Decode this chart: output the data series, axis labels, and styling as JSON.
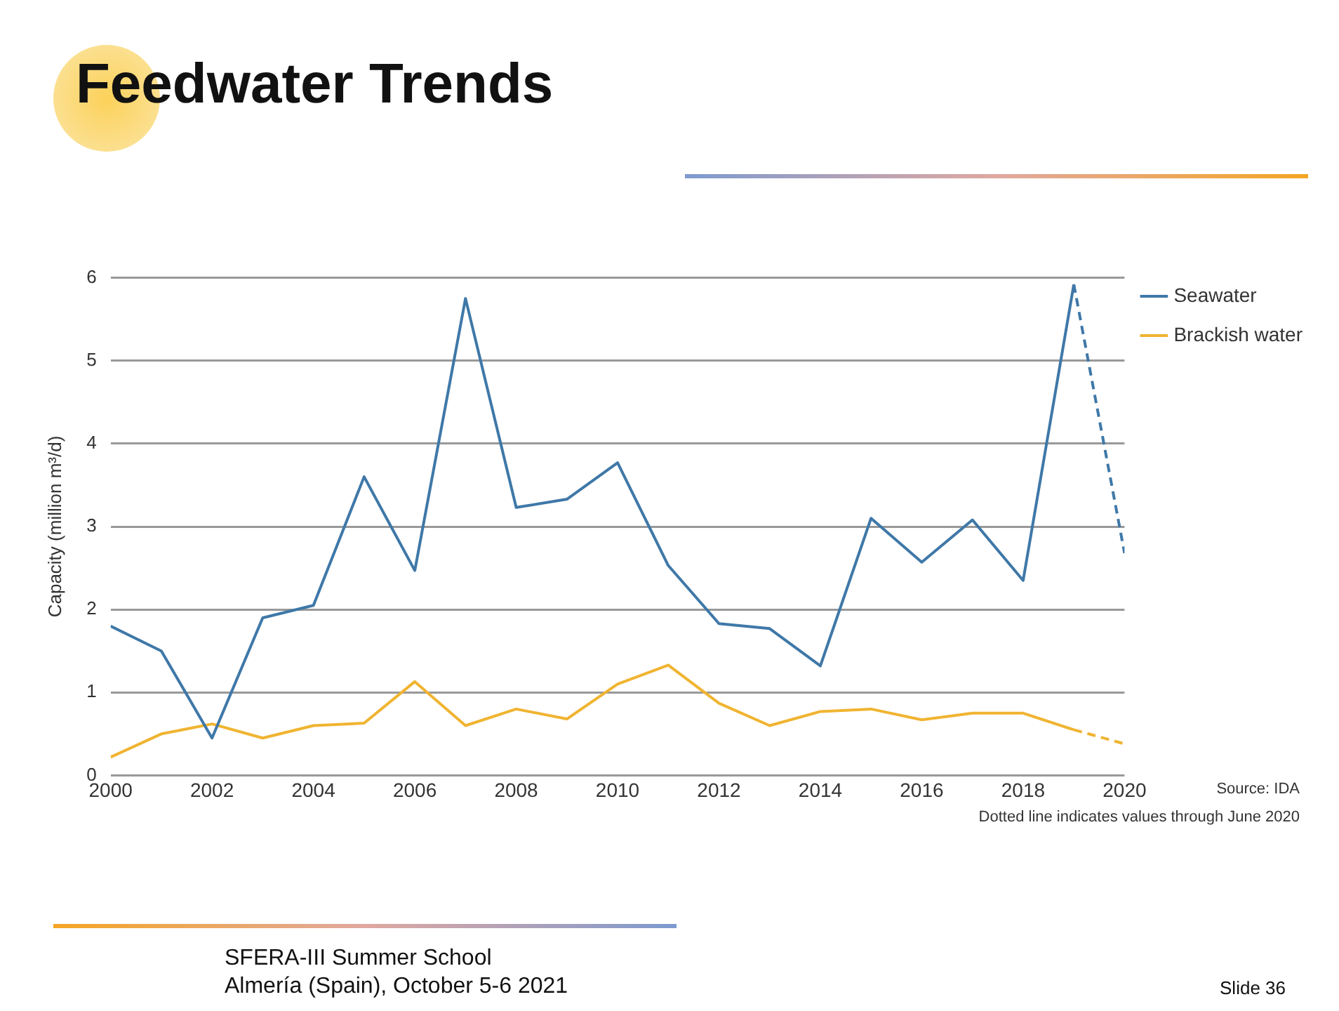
{
  "chart_data": {
    "type": "line",
    "title": "Feedwater Trends",
    "ylabel": "Capacity (million m³/d)",
    "xlim": [
      2000,
      2020
    ],
    "xticks": [
      2000,
      2002,
      2004,
      2006,
      2008,
      2010,
      2012,
      2014,
      2016,
      2018,
      2020
    ],
    "ylim": [
      0,
      6
    ],
    "yticks": [
      0,
      1,
      2,
      3,
      4,
      5,
      6
    ],
    "grid": "y",
    "legend": "top right",
    "marker": "none",
    "series": [
      {
        "name": "Seawater",
        "color": "#3f78a8",
        "line_style": "solid",
        "x": [
          2000,
          2001,
          2002,
          2003,
          2004,
          2005,
          2006,
          2007,
          2008,
          2009,
          2010,
          2011,
          2012,
          2013,
          2014,
          2015,
          2016,
          2017,
          2018,
          2019
        ],
        "values": [
          1.8,
          1.5,
          0.45,
          1.9,
          2.05,
          3.6,
          2.47,
          5.75,
          3.23,
          3.33,
          3.77,
          2.53,
          1.83,
          1.77,
          1.32,
          3.1,
          2.57,
          3.08,
          2.35,
          5.92
        ]
      },
      {
        "name": "Brackish water",
        "color": "#f0b431",
        "line_style": "solid",
        "x": [
          2000,
          2001,
          2002,
          2003,
          2004,
          2005,
          2006,
          2007,
          2008,
          2009,
          2010,
          2011,
          2012,
          2013,
          2014,
          2015,
          2016,
          2017,
          2018,
          2019
        ],
        "values": [
          0.22,
          0.5,
          0.62,
          0.45,
          0.6,
          0.63,
          1.13,
          0.6,
          0.8,
          0.68,
          1.1,
          1.33,
          0.87,
          0.6,
          0.77,
          0.8,
          0.67,
          0.75,
          0.75,
          0.55
        ]
      },
      {
        "color": "#3f78a8",
        "line_style": "dashed",
        "x": [
          2019,
          2020
        ],
        "values": [
          5.92,
          2.68
        ]
      },
      {
        "color": "#f0b431",
        "line_style": "dashed",
        "x": [
          2019,
          2020
        ],
        "values": [
          0.55,
          0.38
        ]
      }
    ],
    "annotations": [
      "Source: IDA",
      "Dotted line indicates values through June 2020",
      "SFERA-III Summer School",
      "Almería (Spain), October 5-6 2021",
      "Slide 36"
    ]
  }
}
